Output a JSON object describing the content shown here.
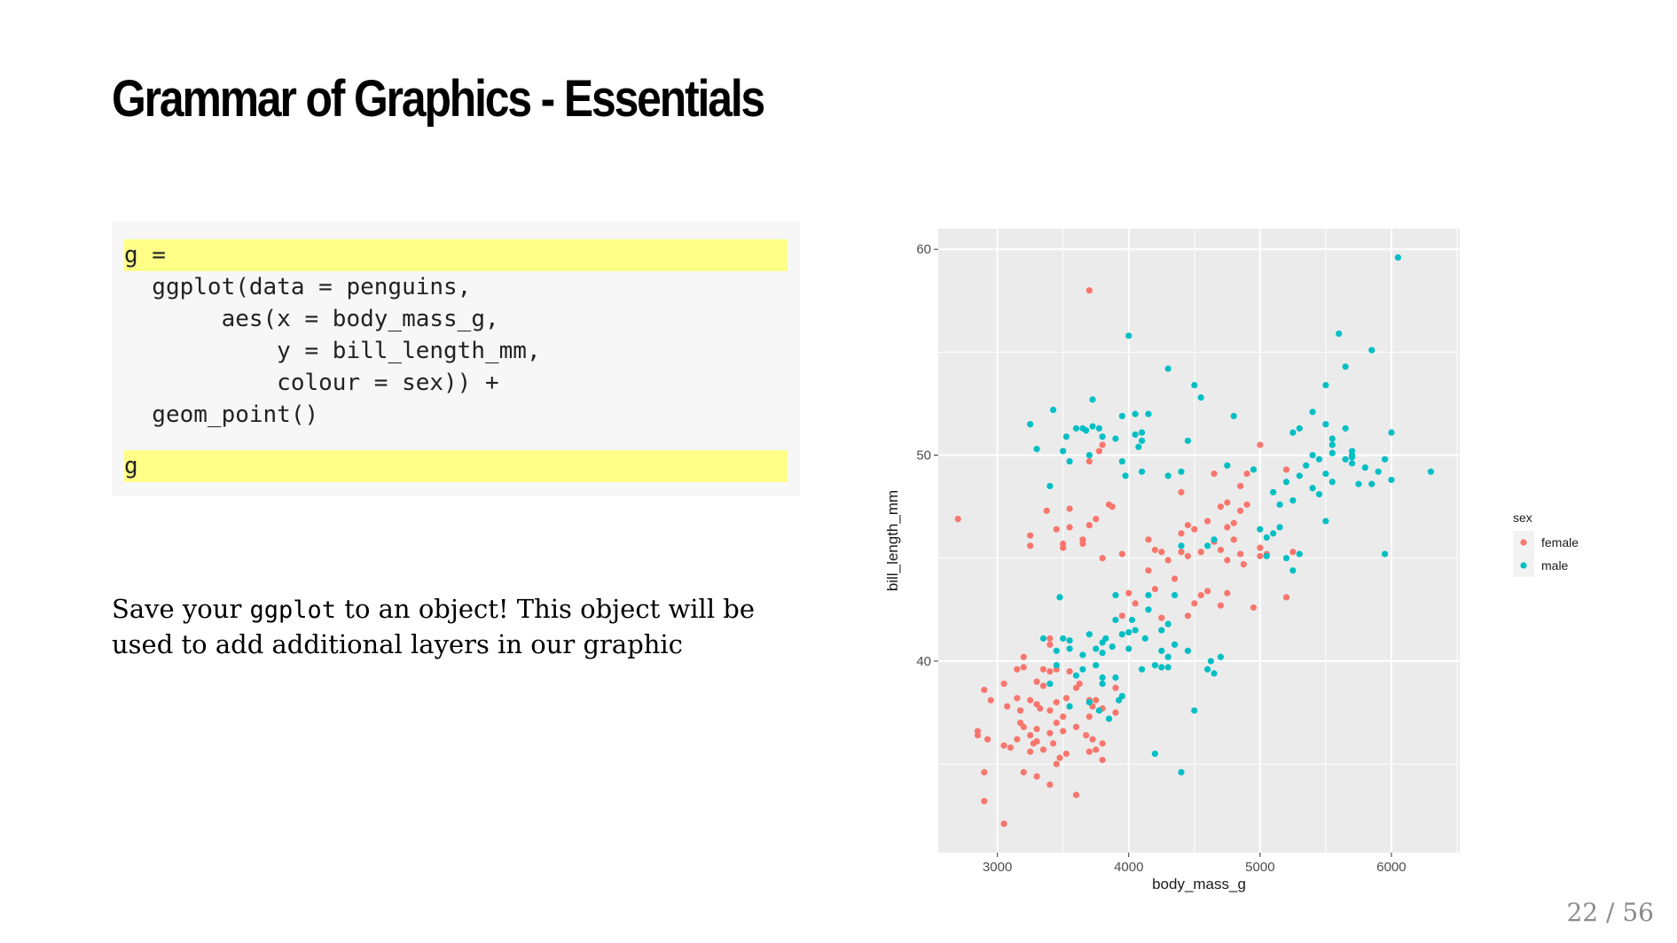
{
  "slide": {
    "title": "Grammar of Graphics - Essentials",
    "page_current": "22",
    "page_sep": "/",
    "page_total": "56"
  },
  "code": {
    "lines": [
      {
        "text": "g =",
        "highlight": true
      },
      {
        "text": "  ggplot(data = penguins,",
        "highlight": false
      },
      {
        "text": "       aes(x = body_mass_g,",
        "highlight": false
      },
      {
        "text": "           y = bill_length_mm,",
        "highlight": false
      },
      {
        "text": "           colour = sex)) +",
        "highlight": false
      },
      {
        "text": "  geom_point()",
        "highlight": false
      },
      {
        "text": "g",
        "highlight": true
      }
    ],
    "highlight_color": "#ffff88",
    "background": "#f7f7f7"
  },
  "caption": {
    "part1": "Save your ",
    "code": "ggplot",
    "part2": " to an object! This object will be",
    "line2": "used to add additional layers in our graphic"
  },
  "chart_data": {
    "type": "scatter",
    "title": "",
    "xlabel": "body_mass_g",
    "ylabel": "bill_length_mm",
    "xlim": [
      2550,
      6520
    ],
    "ylim": [
      30.7,
      61
    ],
    "xticks": [
      3000,
      4000,
      5000,
      6000
    ],
    "yticks": [
      40,
      50,
      60
    ],
    "grid": true,
    "panel_background": "#ebebeb",
    "legend": {
      "title": "sex",
      "position": "right"
    },
    "series": [
      {
        "name": "female",
        "color": "#f8766d",
        "points": [
          [
            2700,
            46.9
          ],
          [
            2850,
            36.6
          ],
          [
            2850,
            36.4
          ],
          [
            2900,
            34.6
          ],
          [
            2900,
            33.2
          ],
          [
            2900,
            38.6
          ],
          [
            2925,
            36.2
          ],
          [
            2950,
            38.1
          ],
          [
            3050,
            32.1
          ],
          [
            3050,
            38.9
          ],
          [
            3050,
            35.9
          ],
          [
            3075,
            37.8
          ],
          [
            3100,
            35.8
          ],
          [
            3150,
            36.2
          ],
          [
            3150,
            39.6
          ],
          [
            3150,
            38.2
          ],
          [
            3175,
            37.6
          ],
          [
            3175,
            37.0
          ],
          [
            3200,
            34.6
          ],
          [
            3200,
            36.8
          ],
          [
            3200,
            39.7
          ],
          [
            3200,
            40.2
          ],
          [
            3250,
            35.6
          ],
          [
            3250,
            38.1
          ],
          [
            3250,
            36.4
          ],
          [
            3250,
            45.6
          ],
          [
            3250,
            46.1
          ],
          [
            3275,
            36.0
          ],
          [
            3300,
            37.9
          ],
          [
            3300,
            36.1
          ],
          [
            3300,
            34.4
          ],
          [
            3300,
            39.0
          ],
          [
            3300,
            36.7
          ],
          [
            3325,
            37.7
          ],
          [
            3350,
            35.7
          ],
          [
            3350,
            38.8
          ],
          [
            3350,
            39.6
          ],
          [
            3375,
            47.3
          ],
          [
            3400,
            37.6
          ],
          [
            3400,
            34.0
          ],
          [
            3400,
            36.5
          ],
          [
            3400,
            41.1
          ],
          [
            3400,
            39.5
          ],
          [
            3400,
            40.8
          ],
          [
            3425,
            36.0
          ],
          [
            3450,
            38.0
          ],
          [
            3450,
            37.0
          ],
          [
            3450,
            35.0
          ],
          [
            3450,
            39.6
          ],
          [
            3450,
            46.4
          ],
          [
            3475,
            35.3
          ],
          [
            3500,
            36.6
          ],
          [
            3500,
            37.3
          ],
          [
            3500,
            45.5
          ],
          [
            3500,
            45.7
          ],
          [
            3525,
            35.5
          ],
          [
            3525,
            38.2
          ],
          [
            3550,
            37.8
          ],
          [
            3550,
            39.5
          ],
          [
            3550,
            47.4
          ],
          [
            3550,
            46.5
          ],
          [
            3600,
            33.5
          ],
          [
            3600,
            38.7
          ],
          [
            3600,
            36.8
          ],
          [
            3625,
            38.9
          ],
          [
            3650,
            45.7
          ],
          [
            3650,
            45.9
          ],
          [
            3675,
            36.4
          ],
          [
            3700,
            37.3
          ],
          [
            3700,
            38.1
          ],
          [
            3700,
            35.6
          ],
          [
            3700,
            46.6
          ],
          [
            3700,
            49.7
          ],
          [
            3700,
            58.0
          ],
          [
            3725,
            37.8
          ],
          [
            3725,
            36.2
          ],
          [
            3750,
            35.7
          ],
          [
            3750,
            38.1
          ],
          [
            3750,
            46.9
          ],
          [
            3775,
            50.2
          ],
          [
            3800,
            35.2
          ],
          [
            3800,
            36.0
          ],
          [
            3800,
            37.7
          ],
          [
            3800,
            45.0
          ],
          [
            3800,
            50.5
          ],
          [
            3850,
            47.6
          ],
          [
            3875,
            47.5
          ],
          [
            3900,
            37.5
          ],
          [
            3900,
            38.7
          ],
          [
            3950,
            45.2
          ],
          [
            3950,
            42.2
          ],
          [
            4000,
            43.3
          ],
          [
            4050,
            42.8
          ],
          [
            4150,
            45.9
          ],
          [
            4150,
            44.4
          ],
          [
            4200,
            43.5
          ],
          [
            4200,
            45.4
          ],
          [
            4250,
            42.1
          ],
          [
            4250,
            45.3
          ],
          [
            4300,
            44.9
          ],
          [
            4350,
            44.0
          ],
          [
            4400,
            45.3
          ],
          [
            4400,
            46.2
          ],
          [
            4400,
            48.2
          ],
          [
            4450,
            42.2
          ],
          [
            4450,
            46.6
          ],
          [
            4450,
            45.1
          ],
          [
            4500,
            42.8
          ],
          [
            4500,
            46.4
          ],
          [
            4550,
            43.2
          ],
          [
            4550,
            45.3
          ],
          [
            4600,
            43.4
          ],
          [
            4600,
            46.8
          ],
          [
            4650,
            45.8
          ],
          [
            4650,
            49.1
          ],
          [
            4700,
            47.5
          ],
          [
            4700,
            45.4
          ],
          [
            4700,
            42.7
          ],
          [
            4750,
            44.9
          ],
          [
            4750,
            46.5
          ],
          [
            4750,
            47.7
          ],
          [
            4750,
            43.3
          ],
          [
            4800,
            45.9
          ],
          [
            4800,
            46.7
          ],
          [
            4850,
            47.3
          ],
          [
            4850,
            48.5
          ],
          [
            4850,
            45.2
          ],
          [
            4875,
            44.7
          ],
          [
            4900,
            47.6
          ],
          [
            4900,
            49.1
          ],
          [
            4950,
            42.6
          ],
          [
            5000,
            45.1
          ],
          [
            5000,
            45.5
          ],
          [
            5000,
            50.5
          ],
          [
            5050,
            45.2
          ],
          [
            5200,
            49.3
          ],
          [
            5200,
            43.1
          ],
          [
            5250,
            45.3
          ]
        ]
      },
      {
        "name": "male",
        "color": "#00bfc4",
        "points": [
          [
            3250,
            51.5
          ],
          [
            3300,
            50.3
          ],
          [
            3350,
            41.1
          ],
          [
            3400,
            48.5
          ],
          [
            3400,
            38.9
          ],
          [
            3425,
            52.2
          ],
          [
            3450,
            40.5
          ],
          [
            3450,
            39.8
          ],
          [
            3475,
            43.1
          ],
          [
            3500,
            41.1
          ],
          [
            3500,
            50.2
          ],
          [
            3525,
            50.9
          ],
          [
            3550,
            40.6
          ],
          [
            3550,
            37.8
          ],
          [
            3550,
            41.0
          ],
          [
            3550,
            49.7
          ],
          [
            3600,
            39.3
          ],
          [
            3600,
            51.3
          ],
          [
            3650,
            39.6
          ],
          [
            3650,
            51.3
          ],
          [
            3650,
            40.3
          ],
          [
            3675,
            51.2
          ],
          [
            3700,
            38.0
          ],
          [
            3700,
            50.0
          ],
          [
            3700,
            41.3
          ],
          [
            3725,
            51.4
          ],
          [
            3725,
            52.7
          ],
          [
            3750,
            39.8
          ],
          [
            3750,
            40.6
          ],
          [
            3775,
            51.3
          ],
          [
            3775,
            37.6
          ],
          [
            3800,
            38.9
          ],
          [
            3800,
            40.9
          ],
          [
            3800,
            39.2
          ],
          [
            3800,
            50.9
          ],
          [
            3800,
            40.4
          ],
          [
            3825,
            41.1
          ],
          [
            3850,
            37.2
          ],
          [
            3875,
            40.7
          ],
          [
            3900,
            39.2
          ],
          [
            3900,
            42.0
          ],
          [
            3900,
            43.2
          ],
          [
            3900,
            50.8
          ],
          [
            3925,
            38.1
          ],
          [
            3950,
            41.3
          ],
          [
            3950,
            38.3
          ],
          [
            3950,
            49.7
          ],
          [
            3950,
            51.9
          ],
          [
            3975,
            49.0
          ],
          [
            4000,
            41.4
          ],
          [
            4000,
            40.6
          ],
          [
            4000,
            55.8
          ],
          [
            4025,
            42.0
          ],
          [
            4050,
            51.0
          ],
          [
            4050,
            52.0
          ],
          [
            4050,
            41.5
          ],
          [
            4075,
            50.4
          ],
          [
            4100,
            39.6
          ],
          [
            4100,
            49.2
          ],
          [
            4100,
            50.7
          ],
          [
            4100,
            51.1
          ],
          [
            4125,
            41.1
          ],
          [
            4150,
            42.5
          ],
          [
            4150,
            43.2
          ],
          [
            4150,
            52.0
          ],
          [
            4200,
            39.8
          ],
          [
            4200,
            35.5
          ],
          [
            4250,
            39.7
          ],
          [
            4250,
            40.5
          ],
          [
            4250,
            41.5
          ],
          [
            4300,
            39.7
          ],
          [
            4300,
            54.2
          ],
          [
            4300,
            49.0
          ],
          [
            4300,
            41.8
          ],
          [
            4300,
            40.2
          ],
          [
            4350,
            40.8
          ],
          [
            4350,
            43.2
          ],
          [
            4400,
            34.6
          ],
          [
            4400,
            49.2
          ],
          [
            4400,
            45.6
          ],
          [
            4450,
            50.7
          ],
          [
            4450,
            40.5
          ],
          [
            4500,
            37.6
          ],
          [
            4500,
            53.4
          ],
          [
            4550,
            52.8
          ],
          [
            4600,
            45.6
          ],
          [
            4600,
            39.6
          ],
          [
            4625,
            40.0
          ],
          [
            4650,
            39.4
          ],
          [
            4650,
            45.9
          ],
          [
            4700,
            40.2
          ],
          [
            4750,
            49.5
          ],
          [
            4800,
            51.9
          ],
          [
            4950,
            49.3
          ],
          [
            5000,
            46.4
          ],
          [
            5050,
            45.1
          ],
          [
            5050,
            46.0
          ],
          [
            5100,
            48.2
          ],
          [
            5100,
            46.2
          ],
          [
            5150,
            47.6
          ],
          [
            5150,
            46.5
          ],
          [
            5200,
            48.7
          ],
          [
            5200,
            45.0
          ],
          [
            5250,
            44.4
          ],
          [
            5250,
            51.1
          ],
          [
            5250,
            47.8
          ],
          [
            5300,
            51.3
          ],
          [
            5300,
            49.0
          ],
          [
            5300,
            45.2
          ],
          [
            5350,
            49.5
          ],
          [
            5400,
            48.4
          ],
          [
            5400,
            50.0
          ],
          [
            5400,
            52.1
          ],
          [
            5450,
            49.8
          ],
          [
            5450,
            48.1
          ],
          [
            5500,
            53.4
          ],
          [
            5500,
            51.5
          ],
          [
            5500,
            49.1
          ],
          [
            5500,
            46.8
          ],
          [
            5550,
            48.7
          ],
          [
            5550,
            50.8
          ],
          [
            5550,
            50.5
          ],
          [
            5550,
            50.1
          ],
          [
            5600,
            55.9
          ],
          [
            5650,
            51.3
          ],
          [
            5650,
            49.8
          ],
          [
            5650,
            54.3
          ],
          [
            5700,
            49.6
          ],
          [
            5700,
            50.2
          ],
          [
            5700,
            49.9
          ],
          [
            5700,
            50.0
          ],
          [
            5750,
            48.6
          ],
          [
            5800,
            49.4
          ],
          [
            5850,
            55.1
          ],
          [
            5850,
            48.6
          ],
          [
            5900,
            49.2
          ],
          [
            5950,
            45.2
          ],
          [
            5950,
            49.8
          ],
          [
            6000,
            51.1
          ],
          [
            6000,
            48.8
          ],
          [
            6050,
            59.6
          ],
          [
            6300,
            49.2
          ]
        ]
      }
    ]
  }
}
